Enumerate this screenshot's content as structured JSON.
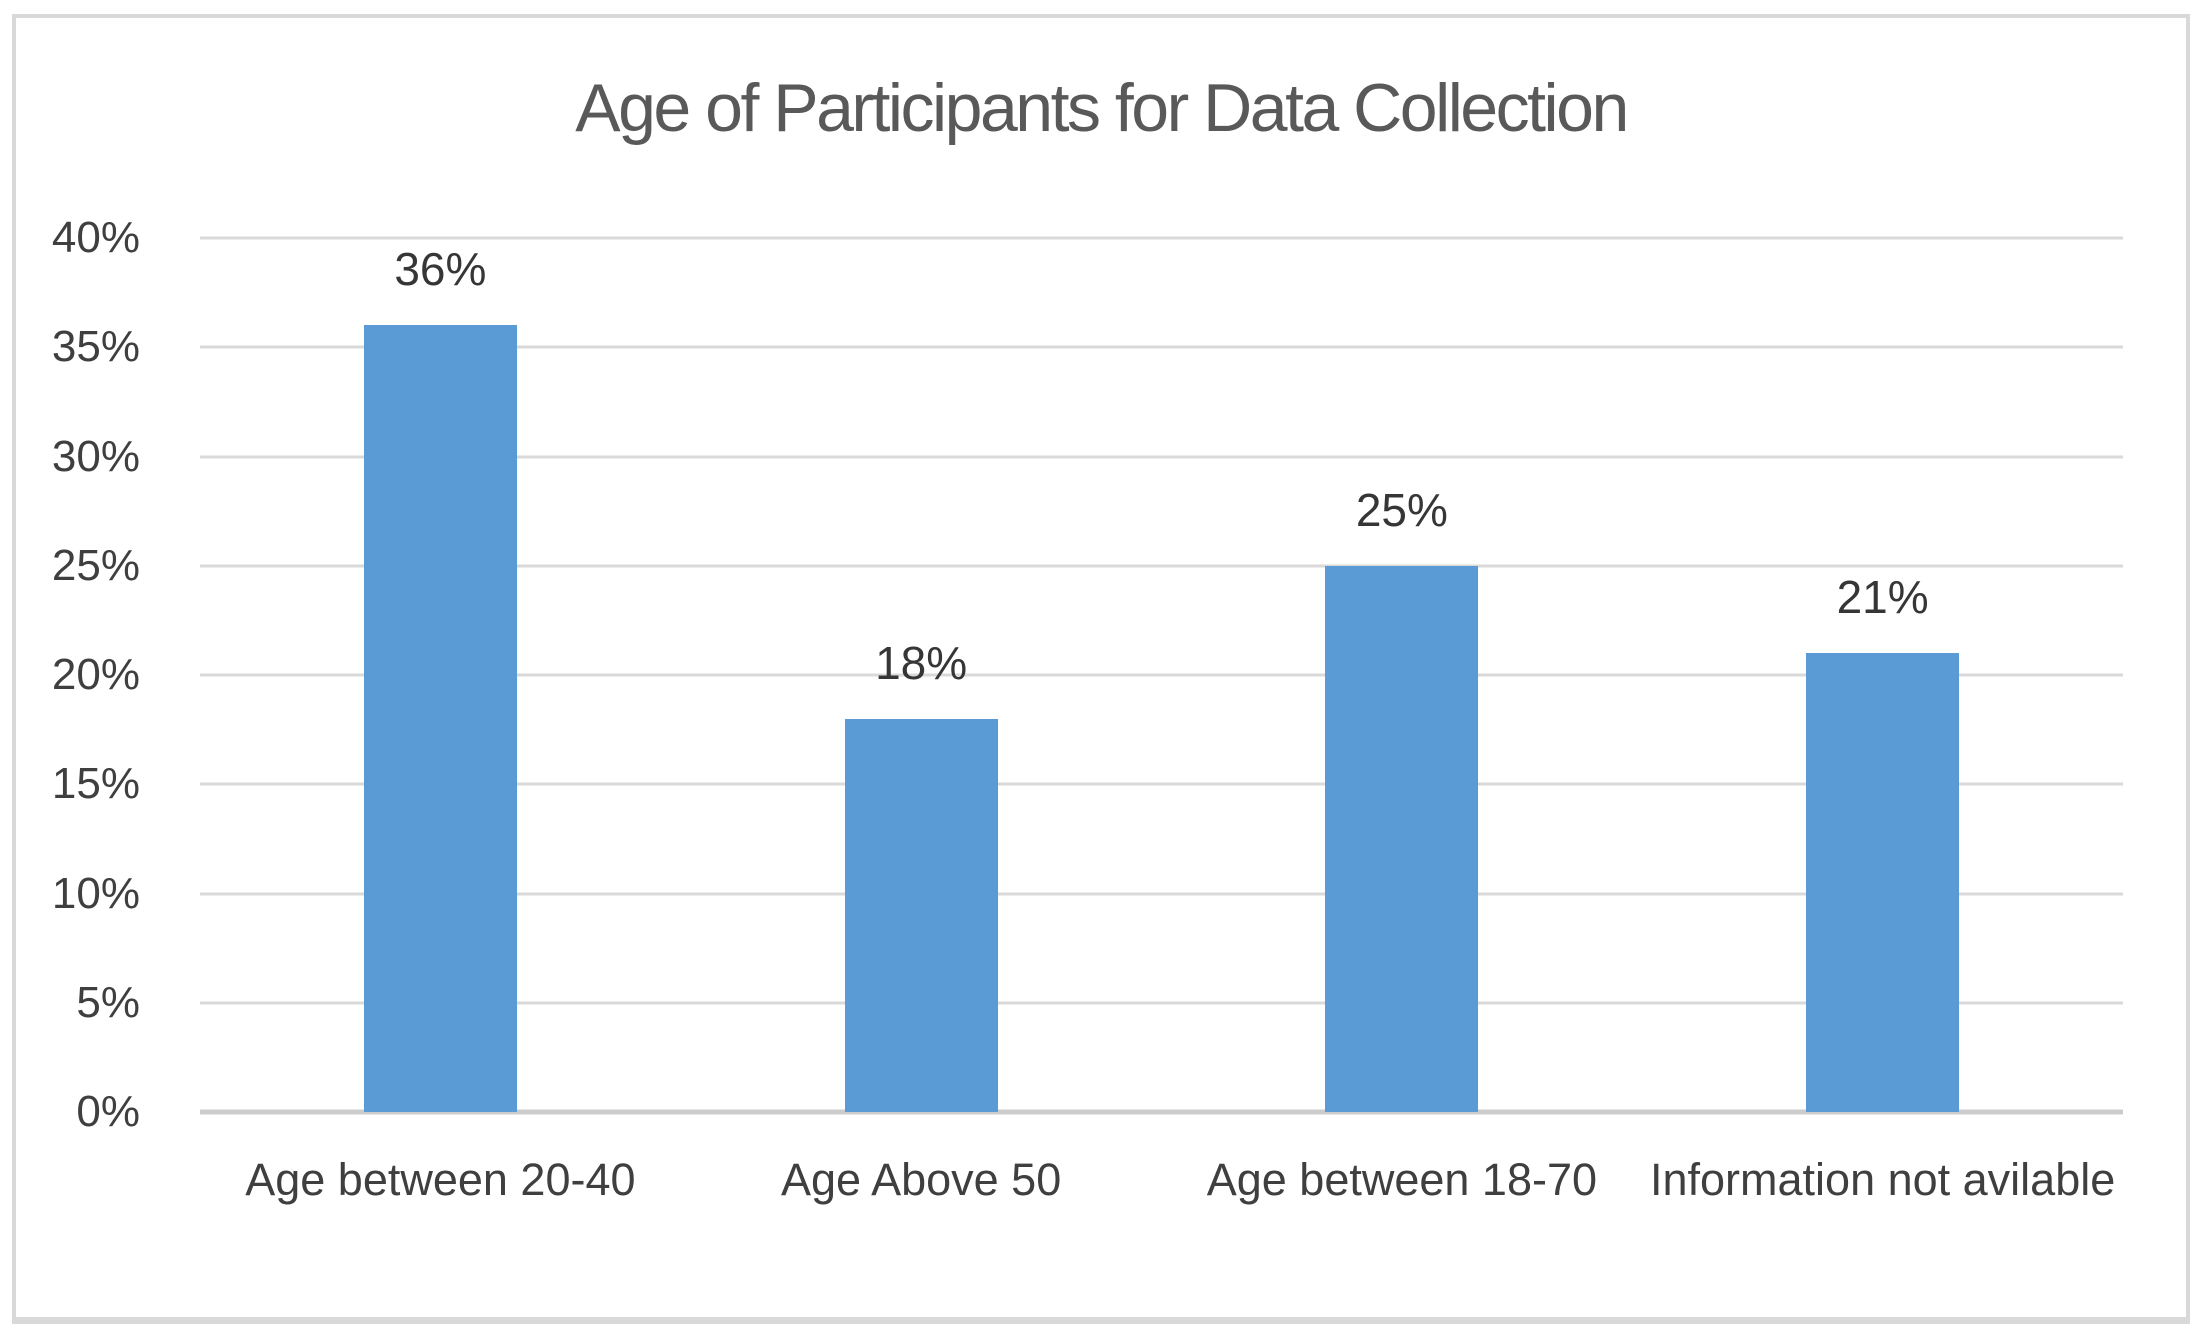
{
  "chart_data": {
    "type": "bar",
    "title": "Age of Participants for Data Collection",
    "categories": [
      "Age between 20-40",
      "Age Above 50",
      "Age between 18-70",
      "Information not avilable"
    ],
    "values": [
      36,
      18,
      25,
      21
    ],
    "data_labels": [
      "36%",
      "18%",
      "25%",
      "21%"
    ],
    "xlabel": "",
    "ylabel": "",
    "ylim": [
      0,
      40
    ],
    "y_tick_step": 5,
    "y_ticks": [
      "40%",
      "35%",
      "30%",
      "25%",
      "20%",
      "15%",
      "10%",
      "5%",
      "0%"
    ],
    "grid": true,
    "legend": "none",
    "colors": {
      "bar": "#5b9bd5",
      "gridline": "#d9d9d9",
      "axis_line": "#cccccc",
      "title_text": "#595959",
      "tick_text": "#3f3f3f",
      "category_text": "#3f3f3f",
      "data_label_text": "#363636",
      "frame_border": "#d9d9d9"
    }
  }
}
